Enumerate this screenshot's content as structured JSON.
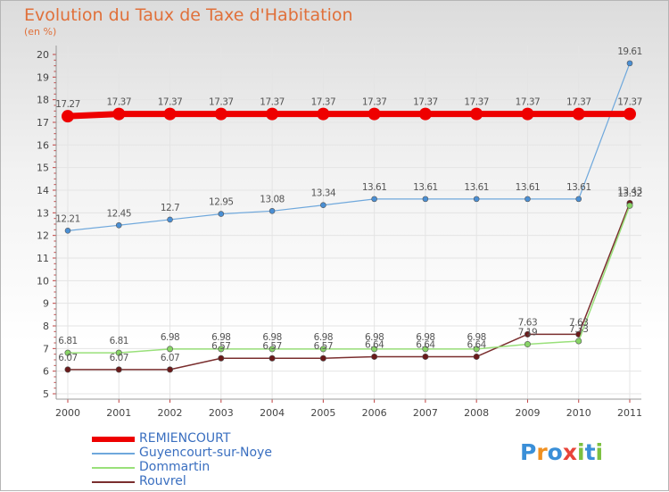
{
  "header": {
    "title": "Evolution du Taux de Taxe d'Habitation",
    "unit": "(en %)"
  },
  "logo": {
    "letters": [
      "P",
      "r",
      "o",
      "x",
      "i",
      "t",
      "i"
    ],
    "colors": [
      "#3a8fd8",
      "#f09020",
      "#3a8fd8",
      "#e8443a",
      "#7cc040",
      "#3a8fd8",
      "#7cc040"
    ]
  },
  "chart_data": {
    "type": "line",
    "title": "Evolution du Taux de Taxe d'Habitation",
    "ylabel": "(en %)",
    "xlabel": "",
    "ylim": [
      5,
      20
    ],
    "yticks": [
      "5",
      "6",
      "7",
      "8",
      "9",
      "10",
      "11",
      "12",
      "13",
      "14",
      "15",
      "16",
      "17",
      "18",
      "19",
      "20"
    ],
    "categories": [
      "2000",
      "2001",
      "2002",
      "2003",
      "2004",
      "2005",
      "2006",
      "2007",
      "2008",
      "2009",
      "2010",
      "2011"
    ],
    "series": [
      {
        "name": "REMIENCOURT",
        "color": "#ee0000",
        "values": [
          17.27,
          17.37,
          17.37,
          17.37,
          17.37,
          17.37,
          17.37,
          17.37,
          17.37,
          17.37,
          17.37,
          17.37
        ],
        "labels": [
          "17.27",
          "17.37",
          "17.37",
          "17.37",
          "17.37",
          "17.37",
          "17.37",
          "17.37",
          "17.37",
          "17.37",
          "17.37",
          "17.37"
        ]
      },
      {
        "name": "Guyencourt-sur-Noye",
        "color": "#6fa8dc",
        "values": [
          12.21,
          12.45,
          12.7,
          12.95,
          13.08,
          13.34,
          13.61,
          13.61,
          13.61,
          13.61,
          13.61,
          19.61
        ],
        "labels": [
          "12.21",
          "12.45",
          "12.7",
          "12.95",
          "13.08",
          "13.34",
          "13.61",
          "13.61",
          "13.61",
          "13.61",
          "13.61",
          "19.61"
        ]
      },
      {
        "name": "Dommartin",
        "color": "#99e07a",
        "values": [
          6.81,
          6.81,
          6.98,
          6.98,
          6.98,
          6.98,
          6.98,
          6.98,
          6.98,
          7.19,
          7.33,
          13.32
        ],
        "labels": [
          "6.81",
          "6.81",
          "6.98",
          "6.98",
          "6.98",
          "6.98",
          "6.98",
          "6.98",
          "6.98",
          "7.19",
          "7.33",
          "13.32"
        ]
      },
      {
        "name": "Rouvrel",
        "color": "#7a2e2e",
        "values": [
          6.07,
          6.07,
          6.07,
          6.57,
          6.57,
          6.57,
          6.64,
          6.64,
          6.64,
          7.63,
          7.63,
          13.43
        ],
        "labels": [
          "6.07",
          "6.07",
          "6.07",
          "6.57",
          "6.57",
          "6.57",
          "6.64",
          "6.64",
          "6.64",
          "7.63",
          "7.63",
          "13.43"
        ]
      }
    ]
  }
}
